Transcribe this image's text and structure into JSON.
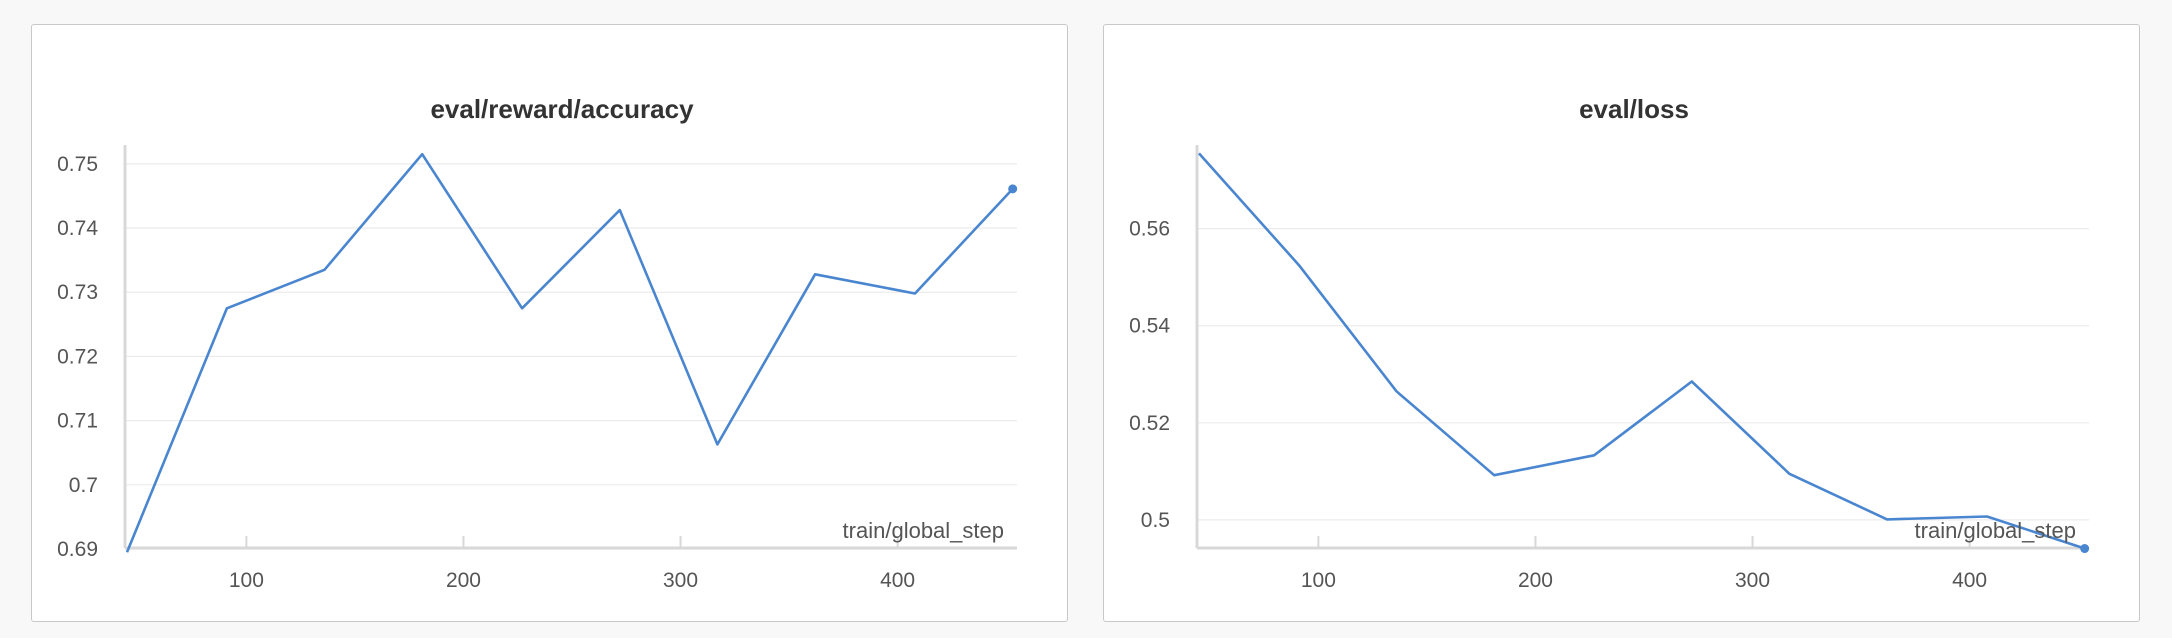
{
  "chart_data": [
    {
      "type": "line",
      "title": "eval/reward/accuracy",
      "xlabel": "train/global_step",
      "ylabel": "",
      "xlim": [
        45,
        455
      ],
      "ylim": [
        0.69,
        0.752
      ],
      "xticks": [
        100,
        200,
        300,
        400
      ],
      "xtick_labels": [
        "100",
        "200",
        "300",
        "400"
      ],
      "yticks": [
        0.69,
        0.7,
        0.71,
        0.72,
        0.73,
        0.74,
        0.75
      ],
      "ytick_labels": [
        "0.69",
        "0.7",
        "0.71",
        "0.72",
        "0.73",
        "0.74",
        "0.75"
      ],
      "grid": true,
      "series": [
        {
          "color": "#4a86d0",
          "x": [
            45,
            91,
            136,
            181,
            227,
            272,
            317,
            362,
            408,
            453
          ],
          "y": [
            0.6895,
            0.7275,
            0.7335,
            0.7515,
            0.7275,
            0.7428,
            0.7063,
            0.7328,
            0.7298,
            0.7461
          ]
        }
      ]
    },
    {
      "type": "line",
      "title": "eval/loss",
      "xlabel": "train/global_step",
      "ylabel": "",
      "xlim": [
        45,
        455
      ],
      "ylim": [
        0.494,
        0.576
      ],
      "xticks": [
        100,
        200,
        300,
        400
      ],
      "xtick_labels": [
        "100",
        "200",
        "300",
        "400"
      ],
      "yticks": [
        0.5,
        0.52,
        0.54,
        0.56
      ],
      "ytick_labels": [
        "0.5",
        "0.52",
        "0.54",
        "0.56"
      ],
      "grid": true,
      "series": [
        {
          "color": "#4a86d0",
          "x": [
            45,
            91,
            136,
            181,
            227,
            272,
            317,
            362,
            408,
            453
          ],
          "y": [
            0.5755,
            0.5525,
            0.5265,
            0.5092,
            0.5133,
            0.5285,
            0.5095,
            0.5001,
            0.5007,
            0.4941
          ]
        }
      ]
    }
  ]
}
